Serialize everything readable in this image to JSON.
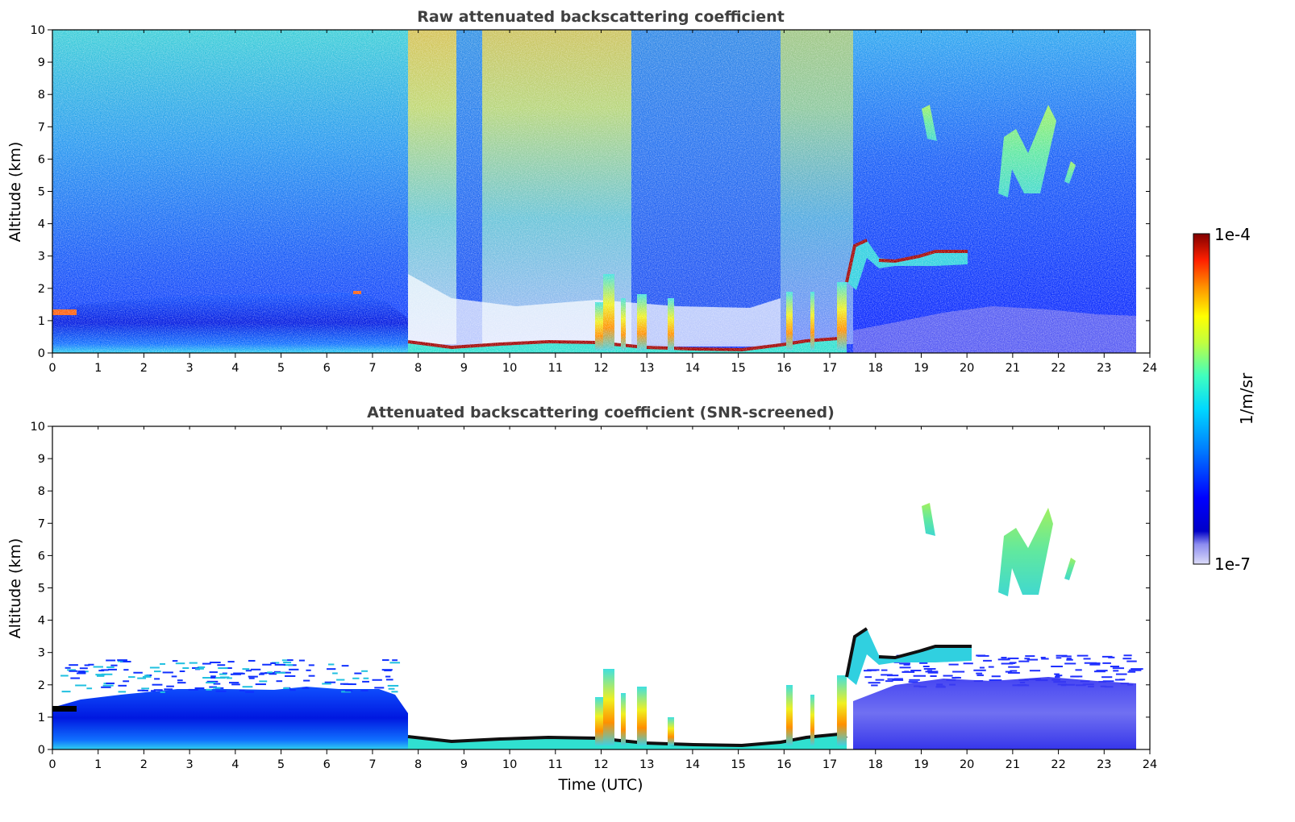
{
  "figure": {
    "xlabel": "Time (UTC)",
    "colorbar": {
      "label": "1/m/sr",
      "max_label": "1e-4",
      "min_label": "1e-7",
      "colormap": "jet",
      "scale": "log",
      "range": [
        1e-07,
        0.0001
      ]
    }
  },
  "chart_data": [
    {
      "type": "heatmap",
      "title": "Raw attenuated backscattering coefficient",
      "xlabel": "",
      "ylabel": "Altitude (km)",
      "xlim": [
        0,
        24
      ],
      "ylim": [
        0,
        10
      ],
      "x_ticks": [
        0,
        1,
        2,
        3,
        4,
        5,
        6,
        7,
        8,
        9,
        10,
        11,
        12,
        13,
        14,
        15,
        16,
        17,
        18,
        19,
        20,
        21,
        22,
        23,
        24
      ],
      "y_ticks": [
        0,
        1,
        2,
        3,
        4,
        5,
        6,
        7,
        8,
        9,
        10
      ],
      "data_extent_hours": [
        0,
        23.7
      ],
      "grid": false,
      "features": {
        "boundary_layer_top_km": [
          [
            0,
            1.25
          ],
          [
            0.6,
            1.5
          ],
          [
            2.5,
            1.7
          ],
          [
            5,
            1.75
          ],
          [
            6.6,
            1.85
          ],
          [
            7.4,
            1.6
          ],
          [
            7.8,
            0.5
          ]
        ],
        "surface_layer_top_km": [
          [
            7.8,
            0.3
          ],
          [
            9,
            0.2
          ],
          [
            11,
            0.3
          ],
          [
            12,
            0.25
          ],
          [
            13,
            0.15
          ],
          [
            15,
            0.1
          ],
          [
            16,
            0.25
          ],
          [
            17.4,
            0.5
          ]
        ],
        "elevated_cloud_layer": [
          [
            17.3,
            2.0
          ],
          [
            17.8,
            3.4
          ],
          [
            18.3,
            2.9
          ],
          [
            19,
            2.85
          ],
          [
            19.5,
            3.1
          ],
          [
            20.1,
            3.1
          ]
        ],
        "cirrus_patches": [
          {
            "x": [
              19.0,
              19.4
            ],
            "y": [
              6.5,
              7.6
            ]
          },
          {
            "x": [
              20.7,
              21.7
            ],
            "y": [
              4.8,
              7.5
            ]
          },
          {
            "x": [
              22.0,
              22.3
            ],
            "y": [
              5.3,
              5.9
            ]
          }
        ],
        "convective_columns_hours": [
          12.0,
          12.2,
          12.4,
          12.8,
          13.0,
          13.6,
          16.1,
          16.6,
          17.0,
          17.4
        ]
      }
    },
    {
      "type": "heatmap",
      "title": "Attenuated backscattering coefficient (SNR-screened)",
      "xlabel": "Time (UTC)",
      "ylabel": "Altitude (km)",
      "xlim": [
        0,
        24
      ],
      "ylim": [
        0,
        10
      ],
      "x_ticks": [
        0,
        1,
        2,
        3,
        4,
        5,
        6,
        7,
        8,
        9,
        10,
        11,
        12,
        13,
        14,
        15,
        16,
        17,
        18,
        19,
        20,
        21,
        22,
        23,
        24
      ],
      "y_ticks": [
        0,
        1,
        2,
        3,
        4,
        5,
        6,
        7,
        8,
        9,
        10
      ],
      "data_extent_hours": [
        0,
        23.7
      ],
      "grid": false,
      "features": {
        "boundary_layer_top_km": [
          [
            0,
            1.25
          ],
          [
            0.6,
            1.5
          ],
          [
            2.5,
            1.8
          ],
          [
            5,
            1.85
          ],
          [
            7.4,
            1.7
          ],
          [
            7.8,
            0.4
          ]
        ],
        "night_layer_top_km": [
          [
            17.8,
            1.6
          ],
          [
            20,
            1.8
          ],
          [
            23.7,
            1.9
          ]
        ],
        "elevated_cloud_layer": [
          [
            17.3,
            2.0
          ],
          [
            17.8,
            3.5
          ],
          [
            18.3,
            2.9
          ],
          [
            19.5,
            3.1
          ],
          [
            20.1,
            3.1
          ]
        ],
        "cirrus_patches": [
          {
            "x": [
              19.0,
              19.3
            ],
            "y": [
              6.6,
              7.5
            ]
          },
          {
            "x": [
              20.7,
              21.7
            ],
            "y": [
              4.8,
              7.4
            ]
          },
          {
            "x": [
              22.0,
              22.3
            ],
            "y": [
              5.3,
              5.9
            ]
          }
        ]
      }
    }
  ]
}
